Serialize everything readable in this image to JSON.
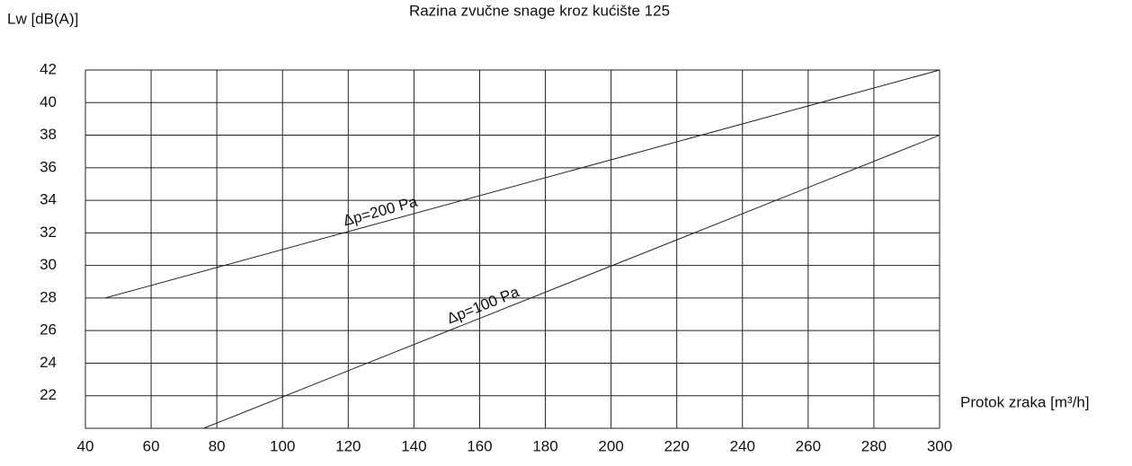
{
  "chart_data": {
    "type": "line",
    "title": "Razina zvučne snage kroz kućište 125",
    "y_label": "Lw [dB(A)]",
    "x_label": "Protok zraka [m³/h]",
    "xlim": [
      40,
      300
    ],
    "xticks": [
      40,
      60,
      80,
      100,
      120,
      140,
      160,
      180,
      200,
      220,
      240,
      260,
      280,
      300
    ],
    "ylim": [
      20,
      42
    ],
    "yticks": [
      22,
      24,
      26,
      28,
      30,
      32,
      34,
      36,
      38,
      40,
      42
    ],
    "grid": true,
    "series": [
      {
        "name": "Δp=200 Pa",
        "color": "#222222",
        "x": [
          46,
          300
        ],
        "values": [
          28,
          42
        ]
      },
      {
        "name": "Δp=100 Pa",
        "color": "#222222",
        "x": [
          76,
          300
        ],
        "values": [
          20,
          38
        ]
      }
    ]
  }
}
